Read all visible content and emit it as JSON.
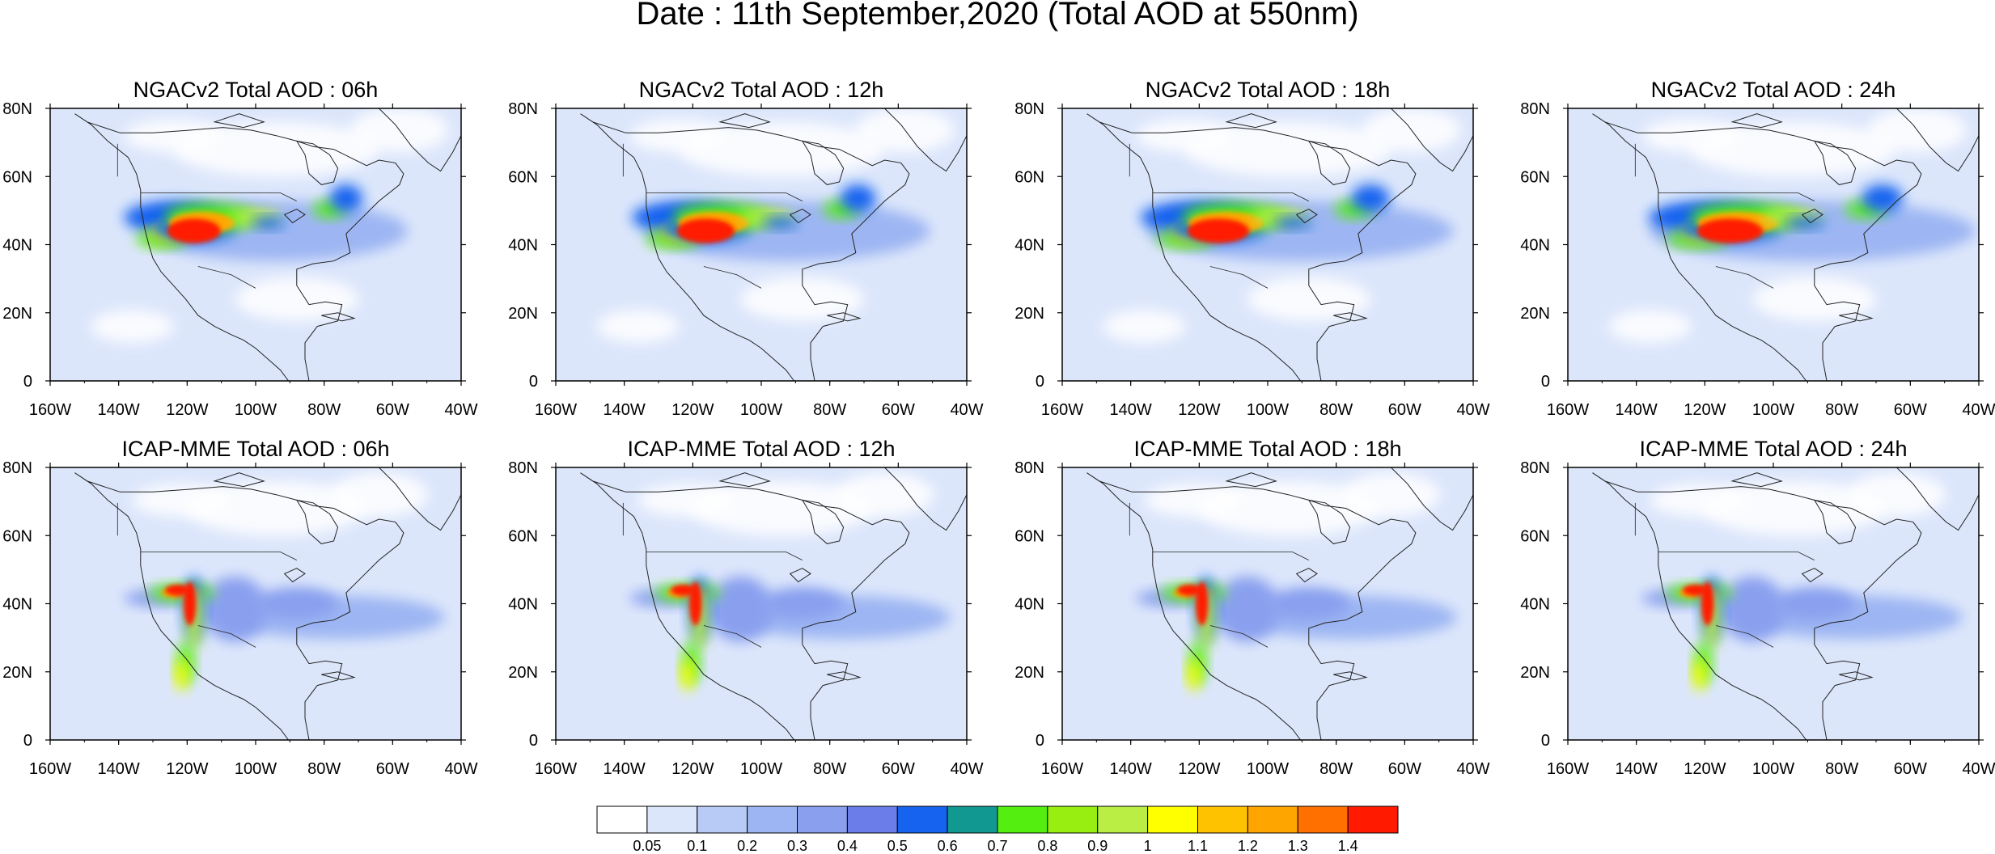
{
  "figure": {
    "title": "Date : 11th September,2020 (Total AOD at 550nm)"
  },
  "axes": {
    "lon_labels": [
      "160W",
      "140W",
      "120W",
      "100W",
      "80W",
      "60W",
      "40W"
    ],
    "lat_labels": [
      "0",
      "20N",
      "40N",
      "60N",
      "80N"
    ],
    "lon_range": [
      -160,
      -40
    ],
    "lat_range": [
      0,
      80
    ]
  },
  "panels": [
    {
      "title": "NGACv2 Total AOD : 06h",
      "model": "NGACv2",
      "hour": 6
    },
    {
      "title": "NGACv2 Total AOD : 12h",
      "model": "NGACv2",
      "hour": 12
    },
    {
      "title": "NGACv2 Total AOD : 18h",
      "model": "NGACv2",
      "hour": 18
    },
    {
      "title": "NGACv2 Total AOD : 24h",
      "model": "NGACv2",
      "hour": 24
    },
    {
      "title": "ICAP-MME Total AOD : 06h",
      "model": "ICAP-MME",
      "hour": 6
    },
    {
      "title": "ICAP-MME Total AOD : 12h",
      "model": "ICAP-MME",
      "hour": 12
    },
    {
      "title": "ICAP-MME Total AOD : 18h",
      "model": "ICAP-MME",
      "hour": 18
    },
    {
      "title": "ICAP-MME Total AOD : 24h",
      "model": "ICAP-MME",
      "hour": 24
    }
  ],
  "colorbar": {
    "labels": [
      "0.05",
      "0.1",
      "0.2",
      "0.3",
      "0.4",
      "0.5",
      "0.6",
      "0.7",
      "0.8",
      "0.9",
      "1",
      "1.1",
      "1.2",
      "1.3",
      "1.4"
    ],
    "colors": [
      "#ffffff",
      "#dce6fb",
      "#b8cbf6",
      "#9db6f3",
      "#8aa0ef",
      "#6a7de9",
      "#1563ef",
      "#119991",
      "#55ee11",
      "#99ee11",
      "#bbee44",
      "#ffff00",
      "#ffc200",
      "#ffa500",
      "#ff7000",
      "#ff1a00"
    ]
  }
}
